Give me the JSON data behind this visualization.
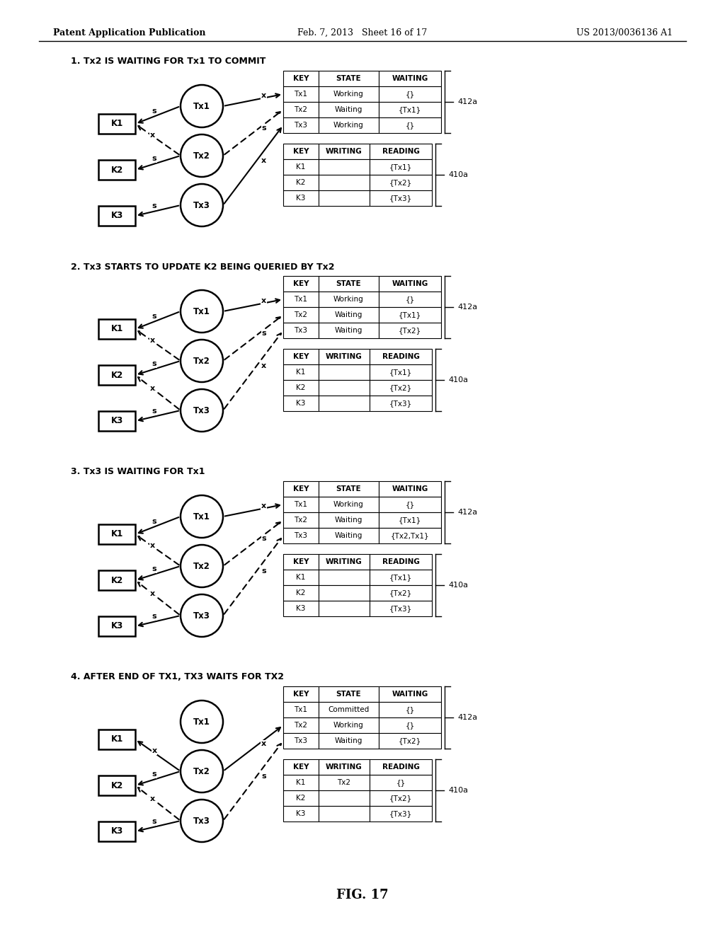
{
  "header_left": "Patent Application Publication",
  "header_mid": "Feb. 7, 2013   Sheet 16 of 17",
  "header_right": "US 2013/0036136 A1",
  "fig_label": "FIG. 17",
  "sections": [
    {
      "title": "1. Tx2 IS WAITING FOR Tx1 TO COMMIT",
      "table412": {
        "label": "412a",
        "headers": [
          "KEY",
          "STATE",
          "WAITING"
        ],
        "rows": [
          [
            "Tx1",
            "Working",
            "{}"
          ],
          [
            "Tx2",
            "Waiting",
            "{Tx1}"
          ],
          [
            "Tx3",
            "Working",
            "{}"
          ]
        ]
      },
      "table410": {
        "label": "410a",
        "headers": [
          "KEY",
          "WRITING",
          "READING"
        ],
        "rows": [
          [
            "K1",
            "",
            "{Tx1}"
          ],
          [
            "K2",
            "",
            "{Tx2}"
          ],
          [
            "K3",
            "",
            "{Tx3}"
          ]
        ]
      },
      "arrows_left": [
        {
          "from": "Tx1",
          "to": "K1",
          "label": "s",
          "dashed": false
        },
        {
          "from": "Tx2",
          "to": "K1",
          "label": "x",
          "dashed": true
        },
        {
          "from": "Tx2",
          "to": "K2",
          "label": "s",
          "dashed": false
        },
        {
          "from": "Tx3",
          "to": "K3",
          "label": "s",
          "dashed": false
        }
      ],
      "arrows_right": [
        {
          "from": "Tx1",
          "to": "row0",
          "label": "x",
          "dashed": false
        },
        {
          "from": "Tx2",
          "to": "row1",
          "label": "s",
          "dashed": true
        },
        {
          "from": "Tx3",
          "to": "row2",
          "label": "x",
          "dashed": false
        }
      ]
    },
    {
      "title": "2. Tx3 STARTS TO UPDATE K2 BEING QUERIED BY Tx2",
      "table412": {
        "label": "412a",
        "headers": [
          "KEY",
          "STATE",
          "WAITING"
        ],
        "rows": [
          [
            "Tx1",
            "Working",
            "{}"
          ],
          [
            "Tx2",
            "Waiting",
            "{Tx1}"
          ],
          [
            "Tx3",
            "Waiting",
            "{Tx2}"
          ]
        ]
      },
      "table410": {
        "label": "410a",
        "headers": [
          "KEY",
          "WRITING",
          "READING"
        ],
        "rows": [
          [
            "K1",
            "",
            "{Tx1}"
          ],
          [
            "K2",
            "",
            "{Tx2}"
          ],
          [
            "K3",
            "",
            "{Tx3}"
          ]
        ]
      },
      "arrows_left": [
        {
          "from": "Tx1",
          "to": "K1",
          "label": "s",
          "dashed": false
        },
        {
          "from": "Tx2",
          "to": "K1",
          "label": "x",
          "dashed": true
        },
        {
          "from": "Tx2",
          "to": "K2",
          "label": "s",
          "dashed": false
        },
        {
          "from": "Tx3",
          "to": "K2",
          "label": "x",
          "dashed": true
        },
        {
          "from": "Tx3",
          "to": "K3",
          "label": "s",
          "dashed": false
        }
      ],
      "arrows_right": [
        {
          "from": "Tx1",
          "to": "row0",
          "label": "x",
          "dashed": false
        },
        {
          "from": "Tx2",
          "to": "row1",
          "label": "s",
          "dashed": true
        },
        {
          "from": "Tx3",
          "to": "row2",
          "label": "x",
          "dashed": true
        }
      ]
    },
    {
      "title": "3. Tx3 IS WAITING FOR Tx1",
      "table412": {
        "label": "412a",
        "headers": [
          "KEY",
          "STATE",
          "WAITING"
        ],
        "rows": [
          [
            "Tx1",
            "Working",
            "{}"
          ],
          [
            "Tx2",
            "Waiting",
            "{Tx1}"
          ],
          [
            "Tx3",
            "Waiting",
            "{Tx2,Tx1}"
          ]
        ]
      },
      "table410": {
        "label": "410a",
        "headers": [
          "KEY",
          "WRITING",
          "READING"
        ],
        "rows": [
          [
            "K1",
            "",
            "{Tx1}"
          ],
          [
            "K2",
            "",
            "{Tx2}"
          ],
          [
            "K3",
            "",
            "{Tx3}"
          ]
        ]
      },
      "arrows_left": [
        {
          "from": "Tx1",
          "to": "K1",
          "label": "s",
          "dashed": false
        },
        {
          "from": "Tx2",
          "to": "K1",
          "label": "x",
          "dashed": true
        },
        {
          "from": "Tx2",
          "to": "K2",
          "label": "s",
          "dashed": false
        },
        {
          "from": "Tx3",
          "to": "K2",
          "label": "x",
          "dashed": true
        },
        {
          "from": "Tx3",
          "to": "K3",
          "label": "s",
          "dashed": false
        }
      ],
      "arrows_right": [
        {
          "from": "Tx1",
          "to": "row0",
          "label": "x",
          "dashed": false
        },
        {
          "from": "Tx2",
          "to": "row1",
          "label": "s",
          "dashed": true
        },
        {
          "from": "Tx3",
          "to": "row2",
          "label": "s",
          "dashed": true
        }
      ]
    },
    {
      "title": "4. AFTER END OF TX1, TX3 WAITS FOR TX2",
      "table412": {
        "label": "412a",
        "headers": [
          "KEY",
          "STATE",
          "WAITING"
        ],
        "rows": [
          [
            "Tx1",
            "Committed",
            "{}"
          ],
          [
            "Tx2",
            "Working",
            "{}"
          ],
          [
            "Tx3",
            "Waiting",
            "{Tx2}"
          ]
        ]
      },
      "table410": {
        "label": "410a",
        "headers": [
          "KEY",
          "WRITING",
          "READING"
        ],
        "rows": [
          [
            "K1",
            "Tx2",
            "{}"
          ],
          [
            "K2",
            "",
            "{Tx2}"
          ],
          [
            "K3",
            "",
            "{Tx3}"
          ]
        ]
      },
      "arrows_left": [
        {
          "from": "Tx2",
          "to": "K1",
          "label": "x",
          "dashed": false
        },
        {
          "from": "Tx2",
          "to": "K2",
          "label": "s",
          "dashed": false
        },
        {
          "from": "Tx3",
          "to": "K2",
          "label": "x",
          "dashed": true
        },
        {
          "from": "Tx3",
          "to": "K3",
          "label": "s",
          "dashed": false
        }
      ],
      "arrows_right": [
        {
          "from": "Tx2",
          "to": "row1",
          "label": "x",
          "dashed": false
        },
        {
          "from": "Tx3",
          "to": "row2",
          "label": "s",
          "dashed": true
        }
      ]
    }
  ]
}
